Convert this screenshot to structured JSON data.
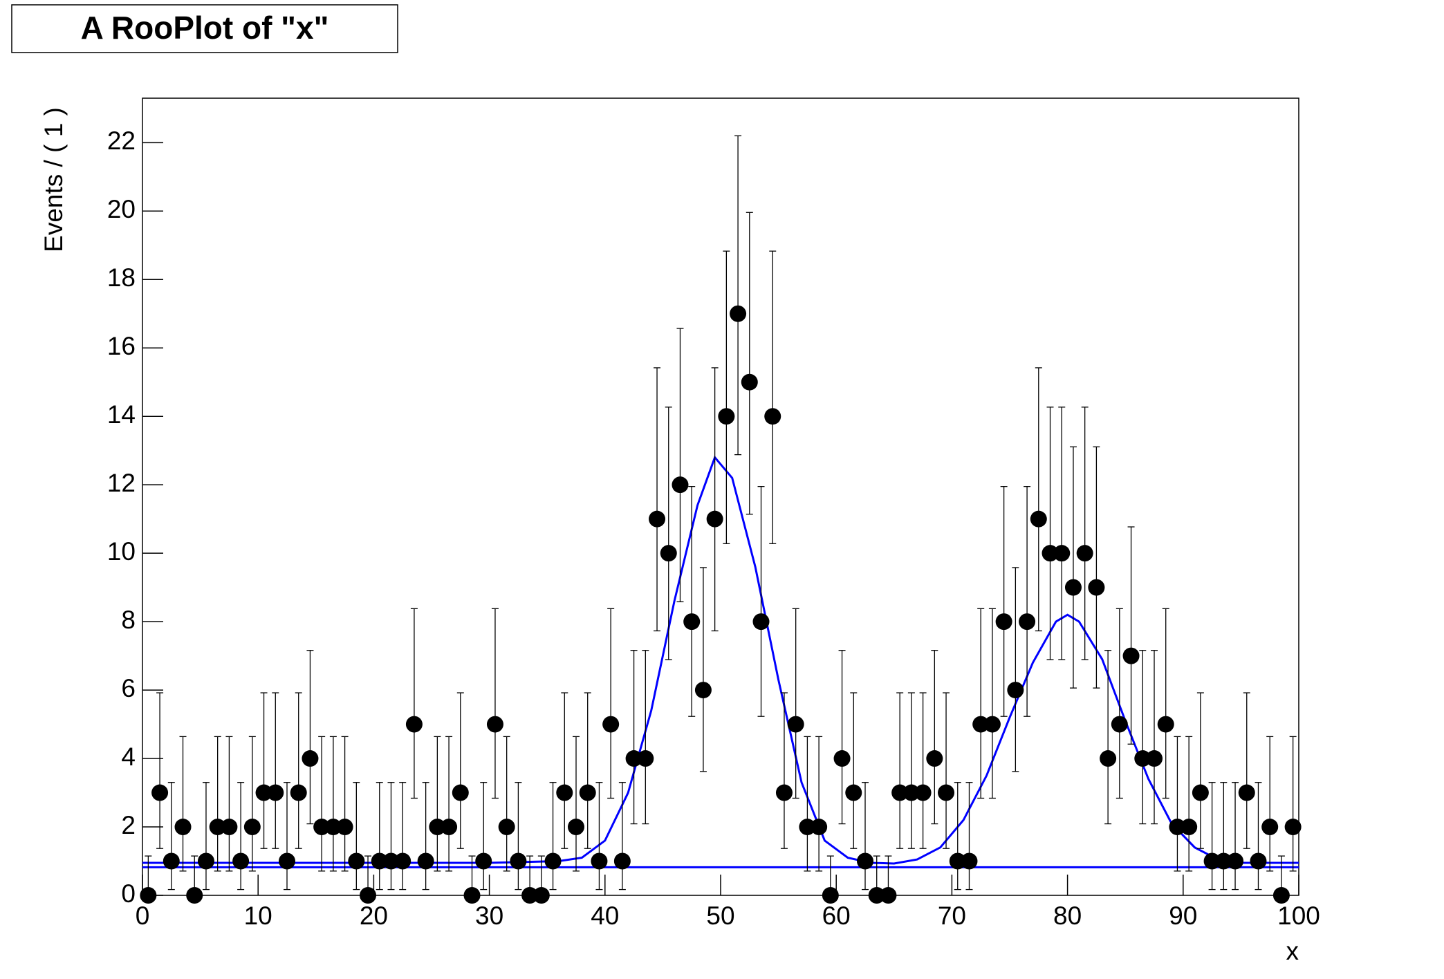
{
  "chart_data": {
    "type": "errorbar",
    "title": "A RooPlot of \"x\"",
    "xlabel": "x",
    "ylabel": "Events / ( 1 )",
    "xlim": [
      0,
      100
    ],
    "ylim": [
      0,
      23.3
    ],
    "xticks": [
      0,
      10,
      20,
      30,
      40,
      50,
      60,
      70,
      80,
      90,
      100
    ],
    "yticks": [
      0,
      2,
      4,
      6,
      8,
      10,
      12,
      14,
      16,
      18,
      20,
      22
    ],
    "color": "#000000",
    "x": [
      0.5,
      1.5,
      2.5,
      3.5,
      4.5,
      5.5,
      6.5,
      7.5,
      8.5,
      9.5,
      10.5,
      11.5,
      12.5,
      13.5,
      14.5,
      15.5,
      16.5,
      17.5,
      18.5,
      19.5,
      20.5,
      21.5,
      22.5,
      23.5,
      24.5,
      25.5,
      26.5,
      27.5,
      28.5,
      29.5,
      30.5,
      31.5,
      32.5,
      33.5,
      34.5,
      35.5,
      36.5,
      37.5,
      38.5,
      39.5,
      40.5,
      41.5,
      42.5,
      43.5,
      44.5,
      45.5,
      46.5,
      47.5,
      48.5,
      49.5,
      50.5,
      51.5,
      52.5,
      53.5,
      54.5,
      55.5,
      56.5,
      57.5,
      58.5,
      59.5,
      60.5,
      61.5,
      62.5,
      63.5,
      64.5,
      65.5,
      66.5,
      67.5,
      68.5,
      69.5,
      70.5,
      71.5,
      72.5,
      73.5,
      74.5,
      75.5,
      76.5,
      77.5,
      78.5,
      79.5,
      80.5,
      81.5,
      82.5,
      83.5,
      84.5,
      85.5,
      86.5,
      87.5,
      88.5,
      89.5,
      90.5,
      91.5,
      92.5,
      93.5,
      94.5,
      95.5,
      96.5,
      97.5,
      98.5,
      99.5
    ],
    "values": [
      0,
      3,
      1,
      2,
      0,
      1,
      2,
      2,
      1,
      2,
      3,
      3,
      1,
      3,
      4,
      2,
      2,
      2,
      1,
      0,
      1,
      1,
      1,
      5,
      1,
      2,
      2,
      3,
      0,
      1,
      5,
      2,
      1,
      0,
      0,
      1,
      3,
      2,
      3,
      1,
      5,
      1,
      4,
      4,
      11,
      10,
      12,
      8,
      6,
      11,
      14,
      17,
      15,
      8,
      14,
      3,
      5,
      2,
      2,
      0,
      4,
      3,
      1,
      0,
      0,
      3,
      3,
      3,
      4,
      3,
      1,
      1,
      5,
      5,
      8,
      6,
      8,
      11,
      10,
      10,
      9,
      10,
      9,
      4,
      5,
      7,
      4,
      4,
      5,
      2,
      2,
      3,
      1,
      1,
      1,
      3,
      1,
      2,
      0,
      2
    ],
    "errors_low": [
      0,
      1.63,
      0.83,
      1.29,
      0,
      0.83,
      1.29,
      1.29,
      0.83,
      1.29,
      1.63,
      1.63,
      0.83,
      1.63,
      1.91,
      1.29,
      1.29,
      1.29,
      0.83,
      0,
      0.83,
      0.83,
      0.83,
      2.16,
      0.83,
      1.29,
      1.29,
      1.63,
      0,
      0.83,
      2.16,
      1.29,
      0.83,
      0,
      0,
      0.83,
      1.63,
      1.29,
      1.63,
      0.83,
      2.16,
      0.83,
      1.91,
      1.91,
      3.27,
      3.11,
      3.42,
      2.77,
      2.38,
      3.27,
      3.72,
      4.12,
      3.86,
      2.77,
      3.72,
      1.63,
      2.16,
      1.29,
      1.29,
      0,
      1.91,
      1.63,
      0.83,
      0,
      0,
      1.63,
      1.63,
      1.63,
      1.91,
      1.63,
      0.83,
      0.83,
      2.16,
      2.16,
      2.77,
      2.38,
      2.77,
      3.27,
      3.11,
      3.11,
      2.94,
      3.11,
      2.94,
      1.91,
      2.16,
      2.58,
      1.91,
      1.91,
      2.16,
      1.29,
      1.29,
      1.63,
      0.83,
      0.83,
      0.83,
      1.63,
      0.83,
      1.29,
      0,
      1.29
    ],
    "errors_high": [
      1.15,
      2.92,
      2.3,
      2.64,
      1.15,
      2.3,
      2.64,
      2.64,
      2.3,
      2.64,
      2.92,
      2.92,
      2.3,
      2.92,
      3.16,
      2.64,
      2.64,
      2.64,
      2.3,
      1.15,
      2.3,
      2.3,
      2.3,
      3.38,
      2.3,
      2.64,
      2.64,
      2.92,
      1.15,
      2.3,
      3.38,
      2.64,
      2.3,
      1.15,
      1.15,
      2.3,
      2.92,
      2.64,
      2.92,
      2.3,
      3.38,
      2.3,
      3.16,
      3.16,
      4.42,
      4.27,
      4.57,
      3.95,
      3.58,
      4.42,
      4.83,
      5.2,
      4.96,
      3.95,
      4.83,
      2.92,
      3.38,
      2.64,
      2.64,
      1.15,
      3.16,
      2.92,
      2.3,
      1.15,
      1.15,
      2.92,
      2.92,
      2.92,
      3.16,
      2.92,
      2.3,
      2.3,
      3.38,
      3.38,
      3.95,
      3.58,
      3.95,
      4.42,
      4.27,
      4.27,
      4.11,
      4.27,
      4.11,
      3.16,
      3.38,
      3.77,
      3.16,
      3.16,
      3.38,
      2.64,
      2.64,
      2.92,
      2.3,
      2.3,
      2.3,
      2.92,
      2.3,
      2.64,
      1.15,
      2.64
    ],
    "curves": [
      {
        "color": "#0000ff",
        "x": [
          0,
          30,
          36,
          38,
          40,
          42,
          44,
          46,
          48,
          49.5,
          51,
          53,
          55,
          57,
          59,
          61,
          63,
          65,
          67,
          69,
          71,
          73,
          75,
          77,
          79,
          80,
          81,
          83,
          85,
          87,
          89,
          91,
          93,
          95,
          100
        ],
        "y": [
          0.95,
          0.95,
          1.0,
          1.1,
          1.6,
          3.0,
          5.4,
          8.6,
          11.4,
          12.8,
          12.2,
          9.6,
          6.3,
          3.3,
          1.6,
          1.1,
          0.95,
          0.93,
          1.05,
          1.4,
          2.2,
          3.5,
          5.2,
          6.8,
          8.0,
          8.2,
          8.0,
          6.9,
          5.1,
          3.4,
          2.1,
          1.4,
          1.05,
          0.95,
          0.95
        ]
      },
      {
        "color": "#0000ff",
        "x": [
          0,
          100
        ],
        "y": [
          0.82,
          0.82
        ]
      }
    ]
  }
}
